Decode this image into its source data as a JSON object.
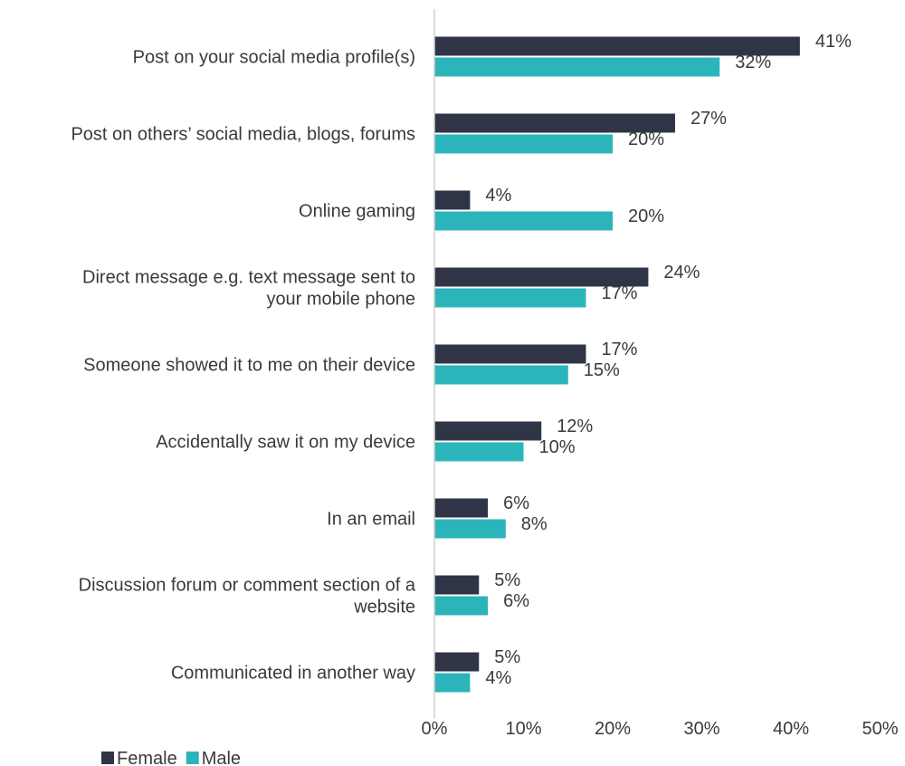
{
  "chart_data": {
    "type": "bar",
    "orientation": "horizontal",
    "categories": [
      [
        "Post on your social media profile(s)"
      ],
      [
        "Post on others’ social media, blogs, forums"
      ],
      [
        "Online gaming"
      ],
      [
        "Direct message e.g. text message sent to",
        "your mobile phone"
      ],
      [
        "Someone showed it to me on their device"
      ],
      [
        "Accidentally saw it on my device"
      ],
      [
        "In an email"
      ],
      [
        "Discussion forum or comment section of a",
        "website"
      ],
      [
        "Communicated in another way"
      ]
    ],
    "series": [
      {
        "name": "Female",
        "color": "#2f3547",
        "values": [
          41,
          27,
          4,
          24,
          17,
          12,
          6,
          5,
          5
        ],
        "labels": [
          "41%",
          "27%",
          "4%",
          "24%",
          "17%",
          "12%",
          "6%",
          "5%",
          "5%"
        ]
      },
      {
        "name": "Male",
        "color": "#2bb5bb",
        "values": [
          32,
          20,
          20,
          17,
          15,
          10,
          8,
          6,
          4
        ],
        "labels": [
          "32%",
          "20%",
          "20%",
          "17%",
          "15%",
          "10%",
          "8%",
          "6%",
          "4%"
        ]
      }
    ],
    "xlim": [
      0,
      50
    ],
    "xticks": [
      0,
      10,
      20,
      30,
      40,
      50
    ],
    "xtick_labels": [
      "0%",
      "10%",
      "20%",
      "30%",
      "40%",
      "50%"
    ],
    "grid": false,
    "legend_position": "bottom-left"
  }
}
